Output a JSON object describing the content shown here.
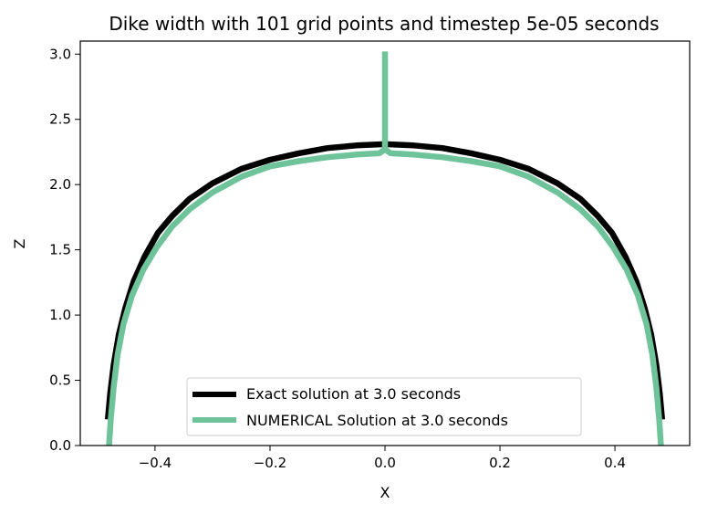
{
  "chart_data": {
    "type": "line",
    "title": "Dike width with 101 grid points and timestep 5e-05 seconds",
    "xlabel": "X",
    "ylabel": "Z",
    "xlim": [
      -0.53,
      0.53
    ],
    "ylim": [
      0.0,
      3.1
    ],
    "xticks": [
      -0.4,
      -0.2,
      0.0,
      0.2,
      0.4
    ],
    "yticks": [
      0.0,
      0.5,
      1.0,
      1.5,
      2.0,
      2.5,
      3.0
    ],
    "xtick_labels": [
      "−0.4",
      "−0.2",
      "0.0",
      "0.2",
      "0.4"
    ],
    "ytick_labels": [
      "0.0",
      "0.5",
      "1.0",
      "1.5",
      "2.0",
      "2.5",
      "3.0"
    ],
    "grid": false,
    "legend_position": "lower center",
    "series": [
      {
        "name": "Exact solution at 3.0 seconds",
        "color": "#000000",
        "points": [
          [
            -0.482,
            0.2
          ],
          [
            -0.478,
            0.4
          ],
          [
            -0.472,
            0.62
          ],
          [
            -0.463,
            0.85
          ],
          [
            -0.452,
            1.05
          ],
          [
            -0.437,
            1.26
          ],
          [
            -0.418,
            1.45
          ],
          [
            -0.395,
            1.63
          ],
          [
            -0.37,
            1.76
          ],
          [
            -0.34,
            1.89
          ],
          [
            -0.3,
            2.01
          ],
          [
            -0.25,
            2.12
          ],
          [
            -0.2,
            2.19
          ],
          [
            -0.15,
            2.24
          ],
          [
            -0.1,
            2.28
          ],
          [
            -0.05,
            2.3
          ],
          [
            0.0,
            2.31
          ],
          [
            0.05,
            2.3
          ],
          [
            0.1,
            2.28
          ],
          [
            0.15,
            2.24
          ],
          [
            0.2,
            2.19
          ],
          [
            0.25,
            2.12
          ],
          [
            0.3,
            2.01
          ],
          [
            0.34,
            1.89
          ],
          [
            0.37,
            1.76
          ],
          [
            0.395,
            1.63
          ],
          [
            0.418,
            1.45
          ],
          [
            0.437,
            1.26
          ],
          [
            0.452,
            1.05
          ],
          [
            0.463,
            0.85
          ],
          [
            0.472,
            0.62
          ],
          [
            0.478,
            0.4
          ],
          [
            0.482,
            0.2
          ]
        ]
      },
      {
        "name": "NUMERICAL Solution at 3.0 seconds",
        "color": "#6fc39a",
        "points": [
          [
            -0.48,
            0.0
          ],
          [
            -0.477,
            0.2
          ],
          [
            -0.472,
            0.45
          ],
          [
            -0.465,
            0.7
          ],
          [
            -0.455,
            0.93
          ],
          [
            -0.44,
            1.15
          ],
          [
            -0.42,
            1.35
          ],
          [
            -0.397,
            1.52
          ],
          [
            -0.37,
            1.68
          ],
          [
            -0.34,
            1.81
          ],
          [
            -0.3,
            1.94
          ],
          [
            -0.25,
            2.06
          ],
          [
            -0.2,
            2.14
          ],
          [
            -0.15,
            2.18
          ],
          [
            -0.1,
            2.21
          ],
          [
            -0.05,
            2.23
          ],
          [
            -0.01,
            2.24
          ],
          [
            0.0,
            2.27
          ],
          [
            0.01,
            2.24
          ],
          [
            0.05,
            2.23
          ],
          [
            0.1,
            2.21
          ],
          [
            0.15,
            2.18
          ],
          [
            0.2,
            2.14
          ],
          [
            0.25,
            2.06
          ],
          [
            0.3,
            1.94
          ],
          [
            0.34,
            1.81
          ],
          [
            0.37,
            1.68
          ],
          [
            0.397,
            1.52
          ],
          [
            0.42,
            1.35
          ],
          [
            0.44,
            1.15
          ],
          [
            0.455,
            0.93
          ],
          [
            0.465,
            0.7
          ],
          [
            0.472,
            0.45
          ],
          [
            0.477,
            0.2
          ],
          [
            0.48,
            0.0
          ]
        ],
        "spike": [
          [
            0.0,
            2.27
          ],
          [
            0.0,
            3.02
          ]
        ]
      }
    ]
  }
}
